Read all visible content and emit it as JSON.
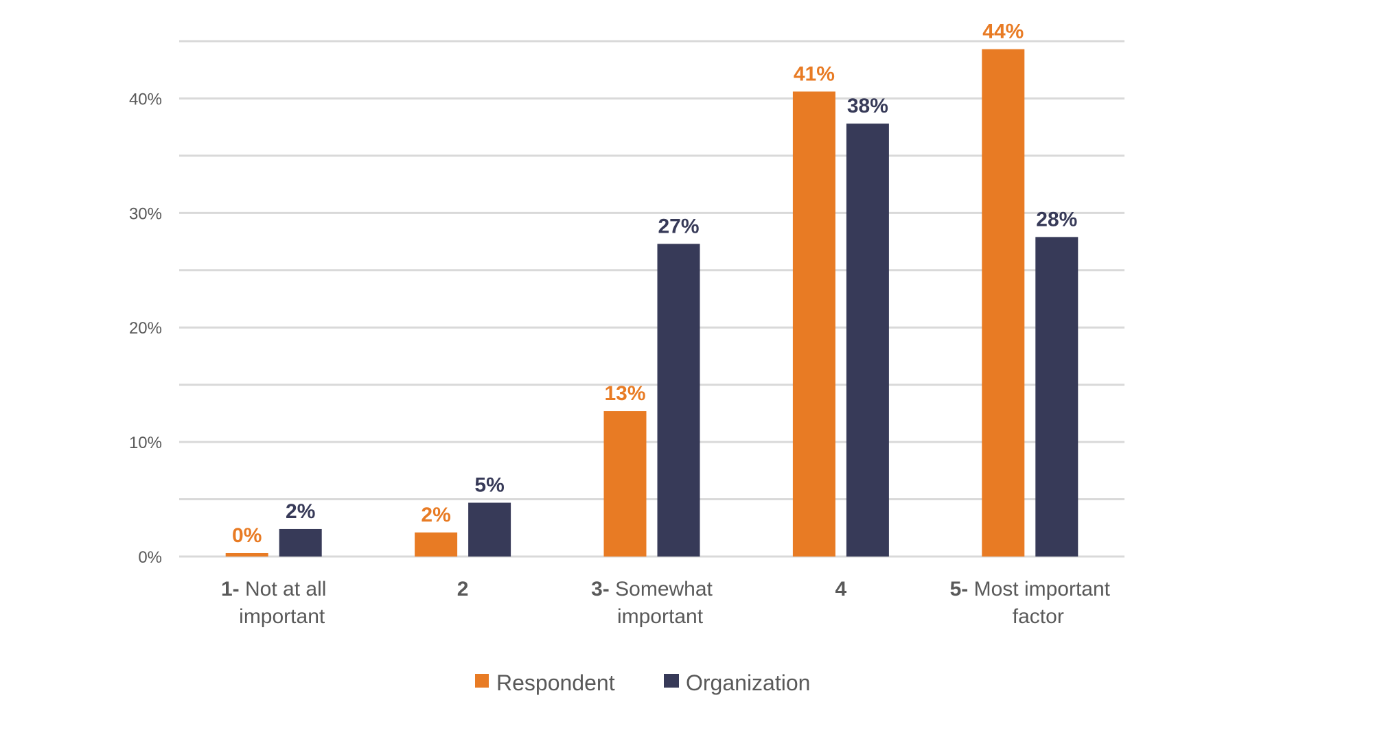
{
  "chart_data": {
    "type": "bar",
    "title": "",
    "xlabel": "",
    "ylabel": "",
    "ylim": [
      0,
      45
    ],
    "yticks": [
      0,
      10,
      20,
      30,
      40
    ],
    "ytick_labels": [
      "0%",
      "10%",
      "20%",
      "30%",
      "40%"
    ],
    "grid": true,
    "grid_step": 5,
    "legend_position": "bottom",
    "categories": [
      {
        "num": "1-",
        "lines": [
          "Not at all",
          "important"
        ]
      },
      {
        "num": "2",
        "lines": []
      },
      {
        "num": "3-",
        "lines": [
          "Somewhat",
          "important"
        ]
      },
      {
        "num": "4",
        "lines": []
      },
      {
        "num": "5-",
        "lines": [
          "Most important",
          "factor"
        ]
      }
    ],
    "category_labels": [
      "1- Not at all important",
      "2",
      "3- Somewhat important",
      "4",
      "5- Most important factor"
    ],
    "series": [
      {
        "name": "Respondent",
        "color": "#E87B24",
        "values": [
          0.3,
          2.1,
          12.7,
          40.6,
          44.3
        ],
        "labels": [
          "0%",
          "2%",
          "13%",
          "41%",
          "44%"
        ]
      },
      {
        "name": "Organization",
        "color": "#373A58",
        "values": [
          2.4,
          4.7,
          27.3,
          37.8,
          27.9
        ],
        "labels": [
          "2%",
          "5%",
          "27%",
          "38%",
          "28%"
        ]
      }
    ]
  }
}
